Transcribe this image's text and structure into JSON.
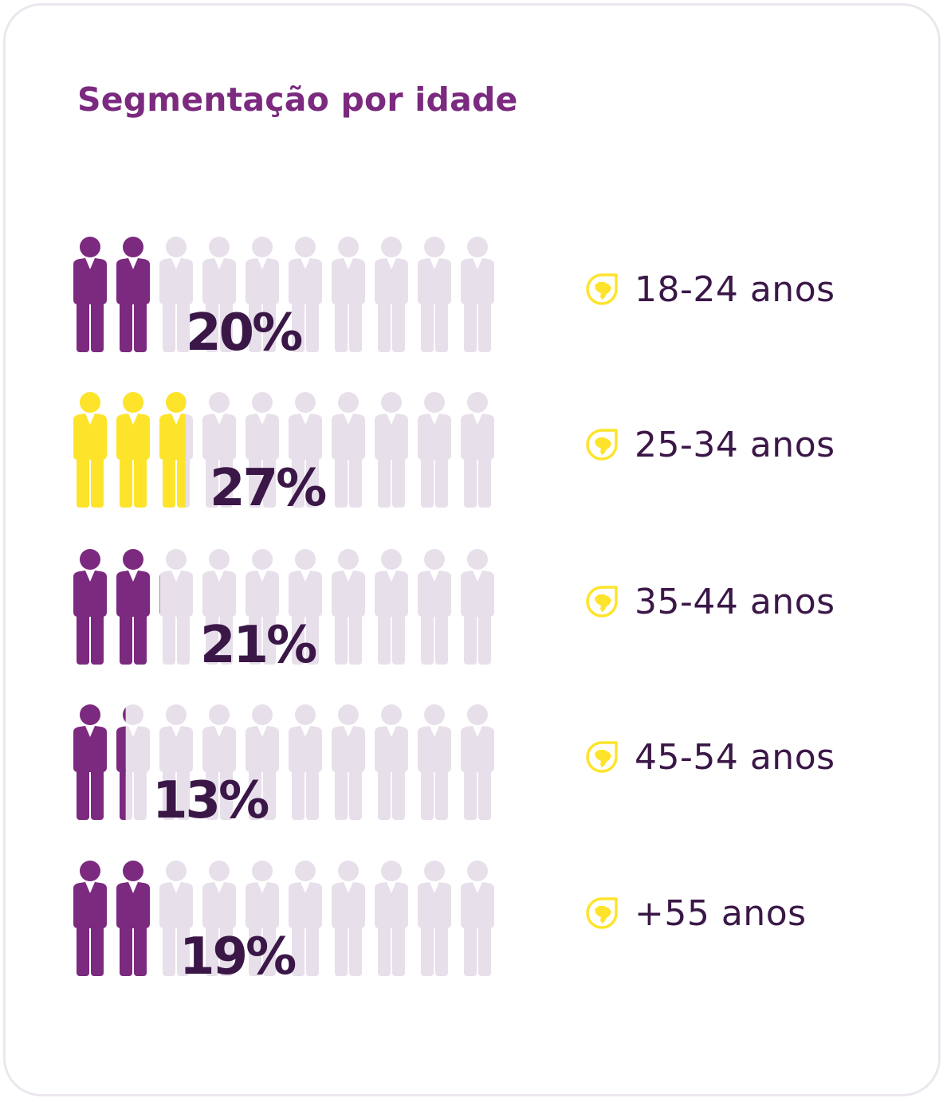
{
  "title": "Segmentação por idade",
  "colors": {
    "purple": "#7b2a7f",
    "yellow": "#fde42b",
    "empty": "#e7dfea",
    "text": "#3b1748",
    "icon": "brazil-map-pin-icon"
  },
  "rows": [
    {
      "label": "18-24 anos",
      "pct_label": "20%"
    },
    {
      "label": "25-34 anos",
      "pct_label": "27%"
    },
    {
      "label": "35-44 anos",
      "pct_label": "21%"
    },
    {
      "label": "45-54 anos",
      "pct_label": "13%"
    },
    {
      "label": "+55 anos",
      "pct_label": "19%"
    }
  ],
  "chart_data": {
    "type": "bar",
    "title": "Segmentação por idade",
    "categories": [
      "18-24 anos",
      "25-34 anos",
      "35-44 anos",
      "45-54 anos",
      "+55 anos"
    ],
    "values": [
      20,
      27,
      21,
      13,
      19
    ],
    "unit": "%",
    "max": 100,
    "icons_per_row": 10,
    "fill_colors": [
      "#7b2a7f",
      "#fde42b",
      "#7b2a7f",
      "#7b2a7f",
      "#7b2a7f"
    ]
  }
}
